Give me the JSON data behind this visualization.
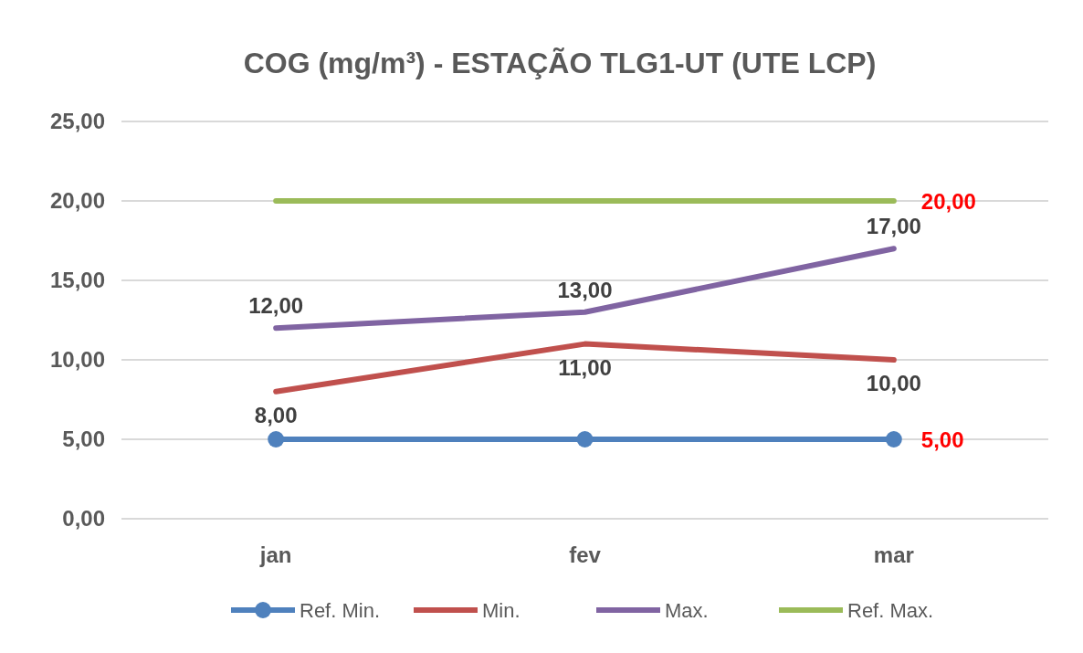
{
  "chart_data": {
    "type": "line",
    "title": "COG (mg/m³) - ESTAÇÃO TLG1-UT (UTE LCP)",
    "categories": [
      "jan",
      "fev",
      "mar"
    ],
    "series": [
      {
        "name": "Ref. Min.",
        "color": "#4f81bd",
        "values": [
          5,
          5,
          5
        ],
        "marker": "circle",
        "value_labels": [
          null,
          null,
          "5,00"
        ]
      },
      {
        "name": "Min.",
        "color": "#c0504d",
        "values": [
          8,
          11,
          10
        ],
        "value_labels": [
          "8,00",
          "11,00",
          "10,00"
        ]
      },
      {
        "name": "Max.",
        "color": "#8064a2",
        "values": [
          12,
          13,
          17
        ],
        "value_labels": [
          "12,00",
          "13,00",
          "17,00"
        ]
      },
      {
        "name": "Ref. Max.",
        "color": "#9bbb59",
        "values": [
          20,
          20,
          20
        ],
        "value_labels": [
          null,
          null,
          "20,00"
        ]
      }
    ],
    "ylim": [
      0,
      25
    ],
    "yticks": [
      {
        "value": 0,
        "label": "0,00"
      },
      {
        "value": 5,
        "label": "5,00"
      },
      {
        "value": 10,
        "label": "10,00"
      },
      {
        "value": 15,
        "label": "15,00"
      },
      {
        "value": 20,
        "label": "20,00"
      },
      {
        "value": 25,
        "label": "25,00"
      }
    ],
    "grid": "y",
    "legend": "bottom"
  }
}
